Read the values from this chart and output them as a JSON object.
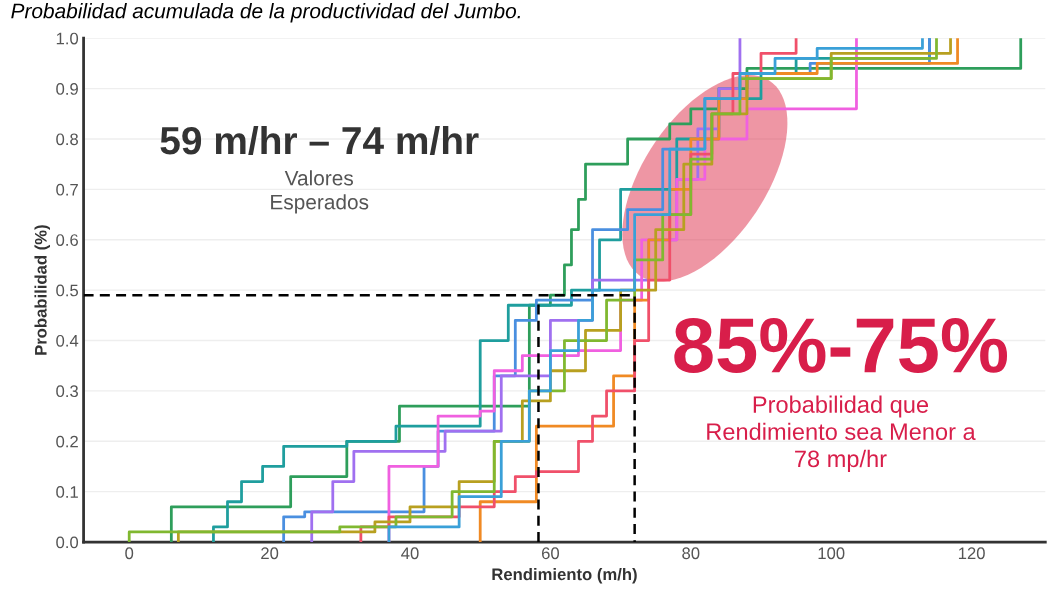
{
  "chart_data": {
    "type": "step",
    "title": "Probabilidad acumulada de la productividad del Jumbo.",
    "xlabel": "Rendimiento (m/h)",
    "ylabel": "Probabilidad (%)",
    "xlim": [
      -6.5,
      130.5
    ],
    "xticks": [
      0,
      20,
      40,
      60,
      80,
      100,
      120
    ],
    "ylim": [
      0,
      1.0
    ],
    "yticks": [
      {
        "value": 0,
        "label": "0.0"
      },
      0.1,
      0.2,
      0.3,
      0.4,
      0.5,
      0.6,
      0.7,
      0.8,
      0.9,
      {
        "value": 1,
        "label": "1.0"
      }
    ],
    "grid": "y",
    "annotations": [
      "59 m/hr – 74 m/hr",
      "Valores\nEsperados",
      "85%-75%",
      "Probabilidad que\nRendimiento sea Menor a\n78 mp/hr"
    ],
    "series": [
      {
        "color": "#2e9e5b",
        "x": [
          6,
          6,
          23,
          31,
          38.5,
          57,
          60,
          62,
          63,
          64,
          65,
          71,
          77,
          80,
          84,
          88,
          127
        ],
        "values": [
          0,
          0.07,
          0.13,
          0.2,
          0.27,
          0.47,
          0.49,
          0.55,
          0.62,
          0.68,
          0.75,
          0.8,
          0.83,
          0.86,
          0.9,
          0.94,
          1.0
        ]
      },
      {
        "color": "#1f9e9e",
        "x": [
          12,
          12,
          14,
          16,
          19,
          22,
          31,
          38,
          50,
          54,
          63,
          67,
          70,
          78,
          84,
          90,
          95,
          114
        ],
        "values": [
          0,
          0.03,
          0.08,
          0.12,
          0.15,
          0.19,
          0.2,
          0.23,
          0.4,
          0.47,
          0.5,
          0.6,
          0.7,
          0.8,
          0.88,
          0.93,
          0.96,
          1.0
        ]
      },
      {
        "color": "#4a8fe0",
        "x": [
          22,
          22,
          25,
          42,
          44,
          50,
          52,
          55,
          58,
          66,
          71,
          76,
          82,
          88,
          97,
          114
        ],
        "values": [
          0,
          0.05,
          0.06,
          0.15,
          0.22,
          0.22,
          0.33,
          0.44,
          0.48,
          0.62,
          0.66,
          0.78,
          0.88,
          0.93,
          0.95,
          1.0
        ]
      },
      {
        "color": "#a070f0",
        "x": [
          26,
          26,
          29,
          32,
          43,
          45,
          53,
          60,
          66,
          74,
          78,
          81,
          84,
          87
        ],
        "values": [
          0,
          0.06,
          0.12,
          0.18,
          0.18,
          0.22,
          0.33,
          0.44,
          0.52,
          0.6,
          0.72,
          0.82,
          0.9,
          1.0
        ]
      },
      {
        "color": "#f060e0",
        "x": [
          37,
          37,
          44,
          50,
          52,
          56,
          64,
          70,
          73,
          78,
          82,
          88,
          103.6
        ],
        "values": [
          0,
          0.15,
          0.25,
          0.26,
          0.34,
          0.37,
          0.38,
          0.48,
          0.6,
          0.72,
          0.8,
          0.86,
          1.0
        ]
      },
      {
        "color": "#f08a24",
        "x": [
          50,
          50,
          58,
          69,
          72,
          74,
          77,
          80,
          84,
          88,
          98,
          118
        ],
        "values": [
          0,
          0.08,
          0.23,
          0.33,
          0.48,
          0.6,
          0.7,
          0.8,
          0.88,
          0.93,
          0.95,
          1.0
        ]
      },
      {
        "color": "#f0506a",
        "x": [
          33,
          33,
          37,
          47,
          52,
          55,
          58,
          64,
          66,
          68,
          72,
          74,
          77,
          80,
          83,
          86,
          90,
          95
        ],
        "values": [
          0,
          0.03,
          0.05,
          0.07,
          0.1,
          0.13,
          0.14,
          0.2,
          0.25,
          0.3,
          0.4,
          0.52,
          0.65,
          0.77,
          0.85,
          0.93,
          0.97,
          1.0
        ]
      },
      {
        "color": "#b8a020",
        "x": [
          7,
          7,
          25,
          35,
          40,
          47,
          52,
          56,
          60,
          65,
          70,
          75,
          79,
          83,
          88,
          100,
          117
        ],
        "values": [
          0,
          0.02,
          0.02,
          0.04,
          0.07,
          0.12,
          0.2,
          0.28,
          0.34,
          0.42,
          0.5,
          0.62,
          0.75,
          0.85,
          0.92,
          0.97,
          1.0
        ]
      },
      {
        "color": "#80b830",
        "x": [
          0,
          0,
          30,
          38,
          46,
          52,
          57,
          62,
          68,
          72,
          76,
          80,
          83,
          87,
          100,
          115
        ],
        "values": [
          0,
          0.02,
          0.03,
          0.05,
          0.1,
          0.2,
          0.3,
          0.4,
          0.48,
          0.56,
          0.65,
          0.76,
          0.85,
          0.92,
          0.96,
          1.0
        ]
      },
      {
        "color": "#3aa0d8",
        "x": [
          37,
          37,
          45,
          47,
          53,
          57,
          60,
          64,
          66,
          72,
          77,
          82,
          87,
          92,
          98,
          113
        ],
        "values": [
          0,
          0.03,
          0.03,
          0.09,
          0.2,
          0.3,
          0.38,
          0.44,
          0.5,
          0.65,
          0.78,
          0.88,
          0.93,
          0.96,
          0.98,
          1.0
        ]
      },
      {
        "type": "line",
        "color": "#000000",
        "line_style": "dashed",
        "x": [
          -6.5,
          72,
          72
        ],
        "values": [
          0.49,
          0.49,
          0
        ]
      },
      {
        "type": "line",
        "color": "#000000",
        "line_style": "dashed",
        "x": [
          58.3,
          58.3
        ],
        "values": [
          0,
          0.48
        ]
      }
    ]
  }
}
